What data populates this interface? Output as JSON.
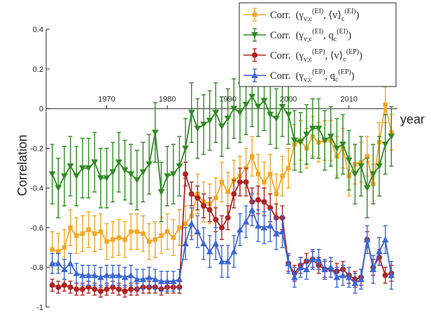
{
  "chart_data": {
    "type": "line",
    "title": "",
    "xlabel": "year",
    "ylabel": "Correlation",
    "x_ticks": [
      1970,
      1980,
      1990,
      2000,
      2010
    ],
    "y_ticks": [
      0.4,
      0.2,
      0,
      -0.2,
      -0.4,
      -0.6,
      -0.8,
      -1
    ],
    "ylim": [
      -1,
      0.4
    ],
    "xlim": [
      1960,
      2018
    ],
    "grid": false,
    "legend_position": "top-right",
    "x": [
      1961,
      1962,
      1963,
      1964,
      1965,
      1966,
      1967,
      1968,
      1969,
      1970,
      1971,
      1972,
      1973,
      1974,
      1975,
      1976,
      1977,
      1978,
      1979,
      1980,
      1981,
      1982,
      1983,
      1984,
      1985,
      1986,
      1987,
      1988,
      1989,
      1990,
      1991,
      1992,
      1993,
      1994,
      1995,
      1996,
      1997,
      1998,
      1999,
      2000,
      2001,
      2002,
      2003,
      2004,
      2005,
      2006,
      2007,
      2008,
      2009,
      2010,
      2011,
      2012,
      2013,
      2014,
      2015,
      2016,
      2017
    ],
    "series": [
      {
        "name": "Corr. (γv;c(EI), ⟨v⟩c(EI))",
        "color": "#f5a623",
        "marker": "square",
        "values": [
          -0.71,
          -0.72,
          -0.7,
          -0.6,
          -0.64,
          -0.63,
          -0.61,
          -0.63,
          -0.62,
          -0.67,
          -0.66,
          -0.65,
          -0.66,
          -0.62,
          -0.62,
          -0.63,
          -0.67,
          -0.66,
          -0.64,
          -0.62,
          -0.65,
          -0.6,
          -0.58,
          -0.54,
          -0.43,
          -0.47,
          -0.48,
          -0.45,
          -0.37,
          -0.42,
          -0.36,
          -0.34,
          -0.3,
          -0.24,
          -0.33,
          -0.37,
          -0.33,
          -0.43,
          -0.34,
          -0.3,
          -0.18,
          -0.16,
          -0.2,
          -0.14,
          -0.17,
          -0.16,
          -0.16,
          -0.24,
          -0.2,
          -0.34,
          -0.28,
          -0.27,
          -0.24,
          -0.38,
          -0.17,
          0.02,
          -0.12
        ],
        "errors": [
          0.09,
          0.09,
          0.09,
          0.09,
          0.09,
          0.09,
          0.09,
          0.09,
          0.09,
          0.09,
          0.09,
          0.09,
          0.09,
          0.09,
          0.09,
          0.09,
          0.09,
          0.09,
          0.09,
          0.09,
          0.09,
          0.09,
          0.09,
          0.1,
          0.1,
          0.1,
          0.1,
          0.1,
          0.1,
          0.1,
          0.1,
          0.1,
          0.1,
          0.1,
          0.1,
          0.1,
          0.1,
          0.1,
          0.1,
          0.1,
          0.1,
          0.1,
          0.1,
          0.1,
          0.1,
          0.1,
          0.1,
          0.1,
          0.1,
          0.1,
          0.1,
          0.1,
          0.1,
          0.1,
          0.1,
          0.09,
          0.09
        ]
      },
      {
        "name": "Corr. (γv;c(EI), qc(EI))",
        "color": "#2e8b22",
        "marker": "triangle-down",
        "values": [
          -0.33,
          -0.4,
          -0.34,
          -0.29,
          -0.34,
          -0.3,
          -0.3,
          -0.27,
          -0.35,
          -0.35,
          -0.32,
          -0.27,
          -0.31,
          -0.33,
          -0.36,
          -0.32,
          -0.28,
          -0.12,
          -0.42,
          -0.34,
          -0.33,
          -0.29,
          -0.2,
          -0.02,
          -0.1,
          -0.08,
          -0.06,
          -0.02,
          -0.09,
          -0.05,
          0.0,
          -0.02,
          0.02,
          0.06,
          0.01,
          0.04,
          -0.03,
          -0.05,
          0.01,
          -0.03,
          -0.16,
          -0.17,
          -0.13,
          -0.1,
          -0.1,
          -0.16,
          -0.14,
          -0.2,
          -0.18,
          -0.26,
          -0.33,
          -0.29,
          -0.4,
          -0.33,
          -0.29,
          -0.18,
          -0.14
        ],
        "errors": [
          0.15,
          0.15,
          0.15,
          0.15,
          0.15,
          0.15,
          0.15,
          0.15,
          0.15,
          0.15,
          0.15,
          0.15,
          0.15,
          0.15,
          0.15,
          0.15,
          0.15,
          0.15,
          0.15,
          0.15,
          0.15,
          0.15,
          0.15,
          0.15,
          0.15,
          0.15,
          0.15,
          0.15,
          0.15,
          0.15,
          0.15,
          0.15,
          0.15,
          0.15,
          0.15,
          0.15,
          0.15,
          0.15,
          0.15,
          0.15,
          0.15,
          0.15,
          0.15,
          0.15,
          0.15,
          0.15,
          0.15,
          0.15,
          0.15,
          0.15,
          0.15,
          0.15,
          0.15,
          0.15,
          0.15,
          0.15,
          0.15
        ]
      },
      {
        "name": "Corr. (γv;c(EP), ⟨v⟩c(EP))",
        "color": "#b22222",
        "marker": "circle",
        "values": [
          -0.89,
          -0.9,
          -0.89,
          -0.9,
          -0.91,
          -0.91,
          -0.9,
          -0.91,
          -0.92,
          -0.91,
          -0.9,
          -0.91,
          -0.92,
          -0.91,
          -0.91,
          -0.9,
          -0.9,
          -0.9,
          -0.91,
          -0.9,
          -0.9,
          -0.9,
          -0.33,
          -0.43,
          -0.45,
          -0.49,
          -0.51,
          -0.56,
          -0.6,
          -0.55,
          -0.43,
          -0.37,
          -0.37,
          -0.47,
          -0.46,
          -0.47,
          -0.5,
          -0.55,
          -0.55,
          -0.78,
          -0.83,
          -0.79,
          -0.77,
          -0.76,
          -0.79,
          -0.81,
          -0.81,
          -0.82,
          -0.81,
          -0.84,
          -0.86,
          -0.85,
          -0.66,
          -0.8,
          -0.75,
          -0.84,
          -0.83
        ],
        "errors": [
          0.03,
          0.03,
          0.03,
          0.03,
          0.03,
          0.03,
          0.03,
          0.03,
          0.03,
          0.03,
          0.03,
          0.03,
          0.03,
          0.03,
          0.03,
          0.03,
          0.03,
          0.03,
          0.03,
          0.03,
          0.03,
          0.03,
          0.06,
          0.06,
          0.06,
          0.06,
          0.06,
          0.06,
          0.06,
          0.06,
          0.07,
          0.07,
          0.07,
          0.07,
          0.07,
          0.07,
          0.07,
          0.07,
          0.06,
          0.04,
          0.04,
          0.04,
          0.04,
          0.04,
          0.04,
          0.04,
          0.04,
          0.04,
          0.04,
          0.04,
          0.04,
          0.04,
          0.04,
          0.04,
          0.04,
          0.04,
          0.04
        ]
      },
      {
        "name": "Corr. (γv;c(EP), qc(EP))",
        "color": "#3a66d6",
        "marker": "triangle-up",
        "values": [
          -0.78,
          -0.78,
          -0.81,
          -0.78,
          -0.83,
          -0.84,
          -0.84,
          -0.84,
          -0.85,
          -0.84,
          -0.84,
          -0.84,
          -0.85,
          -0.84,
          -0.86,
          -0.86,
          -0.85,
          -0.86,
          -0.87,
          -0.87,
          -0.87,
          -0.86,
          -0.68,
          -0.58,
          -0.62,
          -0.68,
          -0.72,
          -0.68,
          -0.77,
          -0.77,
          -0.72,
          -0.61,
          -0.57,
          -0.51,
          -0.59,
          -0.6,
          -0.59,
          -0.63,
          -0.62,
          -0.78,
          -0.85,
          -0.8,
          -0.81,
          -0.76,
          -0.76,
          -0.81,
          -0.8,
          -0.85,
          -0.84,
          -0.85,
          -0.88,
          -0.86,
          -0.66,
          -0.81,
          -0.72,
          -0.66,
          -0.84
        ],
        "errors": [
          0.05,
          0.05,
          0.05,
          0.05,
          0.05,
          0.05,
          0.05,
          0.05,
          0.05,
          0.05,
          0.05,
          0.05,
          0.05,
          0.05,
          0.05,
          0.05,
          0.05,
          0.05,
          0.05,
          0.05,
          0.05,
          0.05,
          0.08,
          0.08,
          0.08,
          0.08,
          0.08,
          0.08,
          0.08,
          0.08,
          0.08,
          0.08,
          0.08,
          0.08,
          0.08,
          0.08,
          0.08,
          0.08,
          0.08,
          0.05,
          0.05,
          0.05,
          0.05,
          0.05,
          0.05,
          0.05,
          0.05,
          0.05,
          0.05,
          0.05,
          0.05,
          0.05,
          0.07,
          0.07,
          0.07,
          0.07,
          0.07
        ]
      }
    ],
    "legend": [
      {
        "corr": "Corr.",
        "left": "(γ",
        "sub1": "v;c",
        "sup1": "(EI)",
        "mid": ", ⟨v⟩",
        "sub2": "c",
        "sup2": "(EI)",
        "right": ")"
      },
      {
        "corr": "Corr.",
        "left": "(γ",
        "sub1": "v;c",
        "sup1": "(EI)",
        "mid": ", q",
        "sub2": "c",
        "sup2": "(EI)",
        "right": ")"
      },
      {
        "corr": "Corr.",
        "left": "(γ",
        "sub1": "v;c",
        "sup1": "(EP)",
        "mid": ", ⟨v⟩",
        "sub2": "c",
        "sup2": "(EP)",
        "right": ")"
      },
      {
        "corr": "Corr.",
        "left": "(γ",
        "sub1": "v;c",
        "sup1": "(EP)",
        "mid": ", q",
        "sub2": "c",
        "sup2": "(EP)",
        "right": ")"
      }
    ]
  }
}
